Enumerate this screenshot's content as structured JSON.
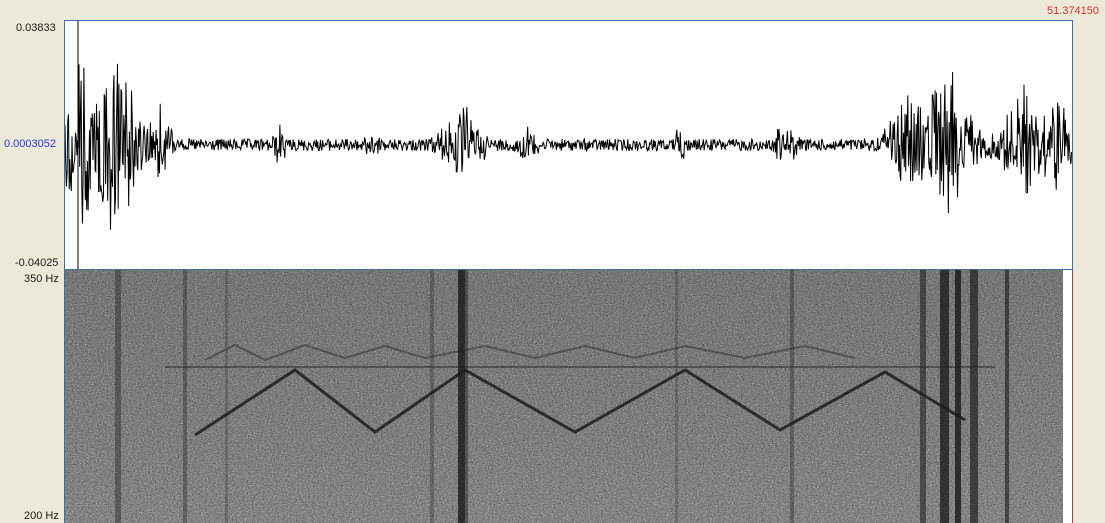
{
  "waveform": {
    "y_max_label": "0.03833",
    "y_center_label": "0.0003052",
    "y_min_label": "-0.04025"
  },
  "spectrogram": {
    "f_max_label": "350 Hz",
    "f_min_label": "200 Hz"
  },
  "cursor": {
    "time_label": "51.374150"
  },
  "colors": {
    "background": "#ece9d8",
    "border": "#3e6fa0",
    "center_label": "#2a3bd8",
    "cursor_label": "#e0302a",
    "waveform": "#000000"
  }
}
